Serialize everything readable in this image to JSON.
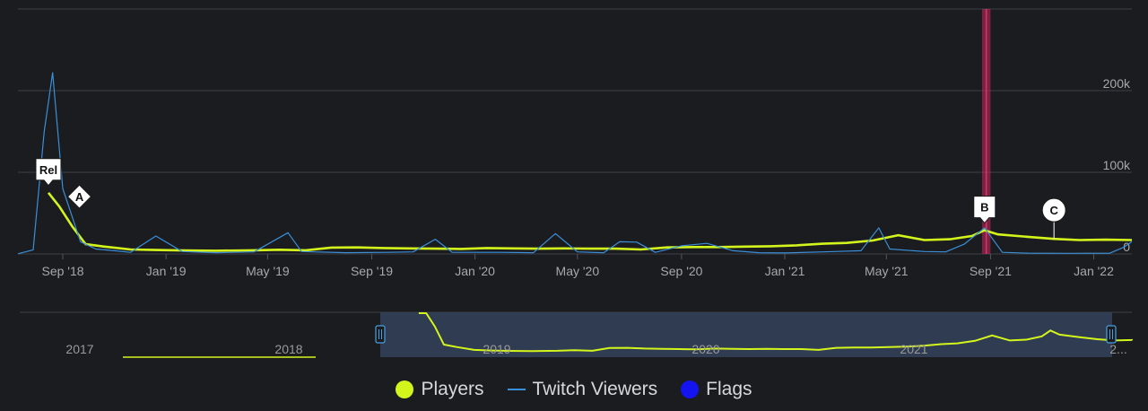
{
  "chart_data": {
    "type": "line",
    "x_axis_labels": [
      "Sep '18",
      "Jan '19",
      "May '19",
      "Sep '19",
      "Jan '20",
      "May '20",
      "Sep '20",
      "Jan '21",
      "May '21",
      "Sep '21",
      "Jan '22"
    ],
    "y_axis_labels": [
      "0",
      "100k",
      "200k"
    ],
    "ylim": [
      0,
      300000
    ],
    "grid": true,
    "x_domain": [
      "2018-07-10",
      "2022-02-15"
    ],
    "series": [
      {
        "name": "Players",
        "color": "#d4f51c",
        "points": [
          [
            "2018-08-15",
            75000
          ],
          [
            "2018-08-28",
            58000
          ],
          [
            "2018-09-12",
            34000
          ],
          [
            "2018-09-28",
            12000
          ],
          [
            "2018-10-20",
            9000
          ],
          [
            "2018-11-20",
            5500
          ],
          [
            "2018-12-20",
            4800
          ],
          [
            "2019-01-20",
            4300
          ],
          [
            "2019-03-01",
            4000
          ],
          [
            "2019-04-15",
            4500
          ],
          [
            "2019-05-15",
            5200
          ],
          [
            "2019-06-15",
            4500
          ],
          [
            "2019-07-15",
            7800
          ],
          [
            "2019-08-15",
            8000
          ],
          [
            "2019-09-15",
            7200
          ],
          [
            "2019-10-15",
            6800
          ],
          [
            "2019-11-15",
            6500
          ],
          [
            "2019-12-15",
            6200
          ],
          [
            "2020-01-15",
            7200
          ],
          [
            "2020-02-15",
            6800
          ],
          [
            "2020-03-15",
            6500
          ],
          [
            "2020-04-15",
            6800
          ],
          [
            "2020-05-15",
            6500
          ],
          [
            "2020-06-15",
            6500
          ],
          [
            "2020-07-15",
            5500
          ],
          [
            "2020-08-15",
            8000
          ],
          [
            "2020-09-15",
            8500
          ],
          [
            "2020-10-15",
            8500
          ],
          [
            "2020-11-15",
            9000
          ],
          [
            "2020-12-15",
            9500
          ],
          [
            "2021-01-15",
            10500
          ],
          [
            "2021-02-15",
            12500
          ],
          [
            "2021-03-15",
            13500
          ],
          [
            "2021-04-15",
            16500
          ],
          [
            "2021-05-15",
            23000
          ],
          [
            "2021-06-15",
            17000
          ],
          [
            "2021-07-15",
            18000
          ],
          [
            "2021-08-10",
            22000
          ],
          [
            "2021-08-25",
            29000
          ],
          [
            "2021-09-10",
            24000
          ],
          [
            "2021-10-15",
            21000
          ],
          [
            "2021-11-15",
            18500
          ],
          [
            "2021-12-15",
            17000
          ],
          [
            "2022-01-15",
            17500
          ],
          [
            "2022-02-15",
            17000
          ]
        ]
      },
      {
        "name": "Twitch Viewers",
        "color": "#3a8fd8",
        "points": [
          [
            "2018-07-10",
            200
          ],
          [
            "2018-07-28",
            5000
          ],
          [
            "2018-08-10",
            150000
          ],
          [
            "2018-08-20",
            222000
          ],
          [
            "2018-09-01",
            80000
          ],
          [
            "2018-09-22",
            15000
          ],
          [
            "2018-10-10",
            6000
          ],
          [
            "2018-11-01",
            4000
          ],
          [
            "2018-11-20",
            2000
          ],
          [
            "2018-12-20",
            22000
          ],
          [
            "2019-01-20",
            3000
          ],
          [
            "2019-03-01",
            1500
          ],
          [
            "2019-04-15",
            2500
          ],
          [
            "2019-05-25",
            26000
          ],
          [
            "2019-06-10",
            3000
          ],
          [
            "2019-08-01",
            1500
          ],
          [
            "2019-09-20",
            2000
          ],
          [
            "2019-10-20",
            2500
          ],
          [
            "2019-11-15",
            18000
          ],
          [
            "2019-12-05",
            2000
          ],
          [
            "2020-02-01",
            2000
          ],
          [
            "2020-03-10",
            1500
          ],
          [
            "2020-04-05",
            25000
          ],
          [
            "2020-05-01",
            2500
          ],
          [
            "2020-06-01",
            1500
          ],
          [
            "2020-06-20",
            15000
          ],
          [
            "2020-07-10",
            14500
          ],
          [
            "2020-08-01",
            2000
          ],
          [
            "2020-09-01",
            10000
          ],
          [
            "2020-10-01",
            13000
          ],
          [
            "2020-11-01",
            4000
          ],
          [
            "2020-12-01",
            1500
          ],
          [
            "2021-01-01",
            1200
          ],
          [
            "2021-03-01",
            3000
          ],
          [
            "2021-04-01",
            4000
          ],
          [
            "2021-04-22",
            32000
          ],
          [
            "2021-05-05",
            6000
          ],
          [
            "2021-06-15",
            3000
          ],
          [
            "2021-07-10",
            2500
          ],
          [
            "2021-08-01",
            12000
          ],
          [
            "2021-08-25",
            32000
          ],
          [
            "2021-09-15",
            2000
          ],
          [
            "2021-10-15",
            1000
          ],
          [
            "2021-12-01",
            800
          ],
          [
            "2022-01-20",
            1000
          ],
          [
            "2022-02-05",
            8000
          ],
          [
            "2022-02-15",
            15000
          ]
        ]
      }
    ],
    "flags": [
      {
        "label": "Rel",
        "date": "2018-08-15",
        "shape": "flag"
      },
      {
        "label": "A",
        "date": "2018-09-10",
        "shape": "diamond"
      },
      {
        "label": "B",
        "date": "2021-08-25",
        "shape": "flag"
      },
      {
        "label": "C",
        "date": "2021-11-15",
        "shape": "circle"
      }
    ],
    "highlight_band": {
      "from": "2021-08-22",
      "to": "2021-09-01",
      "color": "#c8285e"
    },
    "navigator": {
      "year_labels": [
        "2017",
        "2018",
        "2019",
        "2020",
        "2021",
        "2..."
      ],
      "selected_range": [
        "2018-07-10",
        "2022-02-15"
      ]
    }
  },
  "legend": {
    "players_label": "Players",
    "twitch_label": "Twitch Viewers",
    "flags_label": "Flags",
    "players_color": "#d4f51c",
    "twitch_color": "#3a8fd8",
    "flags_color": "#1414f0"
  }
}
